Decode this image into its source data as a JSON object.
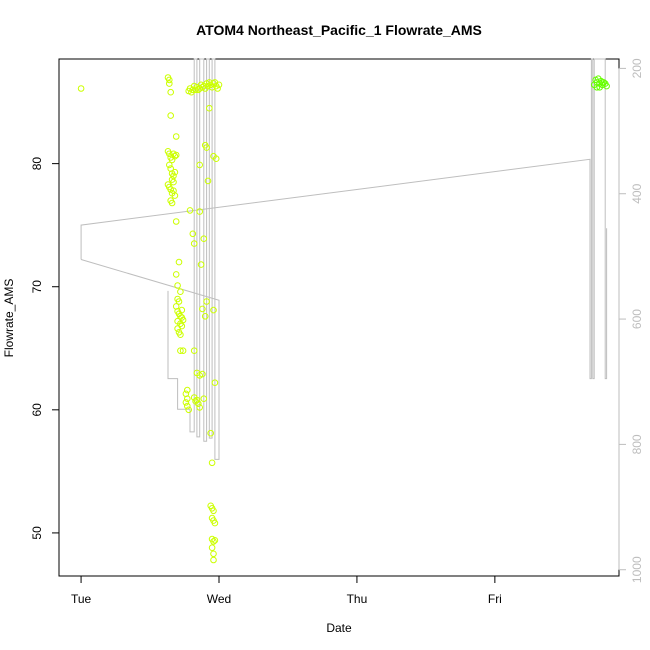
{
  "chart_data": {
    "type": "scatter",
    "title": "ATOM4 Northeast_Pacific_1 Flowrate_AMS",
    "xlabel": "Date",
    "ylabel": "Flowrate_AMS",
    "x_tick_labels": [
      "Tue",
      "Wed",
      "Thu",
      "Fri"
    ],
    "xlim": [
      -0.16,
      3.9
    ],
    "ylim": [
      46.5,
      88.5
    ],
    "y_ticks": [
      50,
      60,
      70,
      80
    ],
    "y2_ticks": [
      200,
      400,
      600,
      800,
      1000
    ],
    "y2lim": [
      1010,
      185
    ],
    "colors": {
      "points": "#ccff00",
      "points_late": "#66ff00",
      "line": "#bebebe",
      "axis": "#000000",
      "axis_right": "#bdbdbd"
    },
    "series": [
      {
        "kind": "points",
        "values": [
          [
            0.0,
            86.1
          ],
          [
            0.63,
            87.0
          ],
          [
            0.64,
            86.5
          ],
          [
            0.64,
            86.8
          ],
          [
            0.65,
            85.8
          ],
          [
            0.65,
            83.9
          ],
          [
            0.63,
            81.0
          ],
          [
            0.64,
            80.8
          ],
          [
            0.65,
            80.5
          ],
          [
            0.66,
            80.3
          ],
          [
            0.67,
            80.8
          ],
          [
            0.68,
            80.6
          ],
          [
            0.69,
            80.7
          ],
          [
            0.64,
            79.9
          ],
          [
            0.65,
            79.6
          ],
          [
            0.66,
            79.2
          ],
          [
            0.67,
            79.0
          ],
          [
            0.68,
            79.3
          ],
          [
            0.66,
            78.7
          ],
          [
            0.67,
            78.5
          ],
          [
            0.63,
            78.3
          ],
          [
            0.64,
            78.1
          ],
          [
            0.65,
            77.9
          ],
          [
            0.66,
            77.6
          ],
          [
            0.67,
            77.8
          ],
          [
            0.68,
            77.4
          ],
          [
            0.65,
            77.0
          ],
          [
            0.66,
            76.8
          ],
          [
            0.69,
            82.2
          ],
          [
            0.69,
            75.3
          ],
          [
            0.69,
            71.0
          ],
          [
            0.71,
            72.0
          ],
          [
            0.7,
            70.1
          ],
          [
            0.72,
            69.6
          ],
          [
            0.7,
            69.0
          ],
          [
            0.71,
            68.8
          ],
          [
            0.69,
            68.4
          ],
          [
            0.7,
            68.0
          ],
          [
            0.71,
            67.8
          ],
          [
            0.72,
            67.6
          ],
          [
            0.73,
            67.5
          ],
          [
            0.7,
            67.2
          ],
          [
            0.72,
            67.0
          ],
          [
            0.73,
            66.8
          ],
          [
            0.7,
            66.6
          ],
          [
            0.71,
            66.3
          ],
          [
            0.72,
            66.1
          ],
          [
            0.73,
            68.1
          ],
          [
            0.74,
            67.3
          ],
          [
            0.72,
            64.8
          ],
          [
            0.74,
            64.8
          ],
          [
            0.77,
            61.6
          ],
          [
            0.76,
            61.3
          ],
          [
            0.77,
            60.9
          ],
          [
            0.76,
            60.6
          ],
          [
            0.77,
            60.3
          ],
          [
            0.78,
            60.0
          ],
          [
            0.78,
            85.9
          ],
          [
            0.79,
            86.1
          ],
          [
            0.8,
            85.8
          ],
          [
            0.81,
            86.0
          ],
          [
            0.82,
            86.3
          ],
          [
            0.83,
            86.0
          ],
          [
            0.84,
            86.2
          ],
          [
            0.85,
            86.0
          ],
          [
            0.86,
            86.1
          ],
          [
            0.87,
            86.4
          ],
          [
            0.88,
            86.2
          ],
          [
            0.89,
            86.3
          ],
          [
            0.9,
            86.1
          ],
          [
            0.91,
            86.5
          ],
          [
            0.92,
            86.3
          ],
          [
            0.93,
            86.6
          ],
          [
            0.94,
            86.4
          ],
          [
            0.95,
            86.2
          ],
          [
            0.96,
            86.5
          ],
          [
            0.97,
            86.6
          ],
          [
            0.98,
            86.3
          ],
          [
            0.99,
            86.1
          ],
          [
            1.0,
            86.4
          ],
          [
            0.79,
            76.2
          ],
          [
            0.81,
            74.3
          ],
          [
            0.82,
            73.5
          ],
          [
            0.86,
            76.1
          ],
          [
            0.87,
            71.8
          ],
          [
            0.89,
            73.9
          ],
          [
            0.91,
            68.8
          ],
          [
            0.9,
            67.6
          ],
          [
            0.88,
            68.2
          ],
          [
            0.92,
            78.6
          ],
          [
            0.9,
            81.5
          ],
          [
            0.91,
            81.3
          ],
          [
            0.86,
            79.9
          ],
          [
            0.96,
            80.6
          ],
          [
            0.98,
            80.4
          ],
          [
            0.93,
            84.5
          ],
          [
            0.82,
            64.8
          ],
          [
            0.84,
            63.0
          ],
          [
            0.86,
            62.8
          ],
          [
            0.88,
            62.9
          ],
          [
            0.82,
            61.0
          ],
          [
            0.84,
            60.8
          ],
          [
            0.85,
            60.5
          ],
          [
            0.86,
            60.2
          ],
          [
            0.83,
            60.7
          ],
          [
            0.89,
            60.9
          ],
          [
            0.96,
            68.1
          ],
          [
            0.97,
            62.2
          ],
          [
            0.94,
            58.1
          ],
          [
            0.95,
            55.7
          ],
          [
            0.94,
            52.2
          ],
          [
            0.95,
            52.0
          ],
          [
            0.96,
            51.8
          ],
          [
            0.95,
            51.2
          ],
          [
            0.96,
            51.0
          ],
          [
            0.97,
            50.8
          ],
          [
            0.95,
            49.5
          ],
          [
            0.96,
            49.3
          ],
          [
            0.97,
            49.4
          ],
          [
            0.95,
            48.8
          ],
          [
            0.96,
            48.3
          ],
          [
            0.96,
            47.8
          ]
        ]
      },
      {
        "kind": "points_late",
        "values": [
          [
            3.72,
            86.4
          ],
          [
            3.73,
            86.8
          ],
          [
            3.74,
            86.6
          ],
          [
            3.75,
            86.9
          ],
          [
            3.76,
            86.5
          ],
          [
            3.77,
            86.7
          ],
          [
            3.78,
            86.4
          ],
          [
            3.79,
            86.6
          ],
          [
            3.8,
            86.5
          ],
          [
            3.81,
            86.3
          ],
          [
            3.74,
            86.2
          ],
          [
            3.76,
            86.2
          ],
          [
            3.78,
            86.6
          ]
        ]
      },
      {
        "kind": "line",
        "axis": "right",
        "values": [
          [
            0.0,
            505
          ],
          [
            0.0,
            450
          ],
          [
            3.69,
            345
          ],
          [
            3.69,
            695
          ],
          [
            3.7,
            695
          ],
          [
            3.7,
            185
          ],
          [
            3.71,
            185
          ],
          [
            3.71,
            695
          ],
          [
            3.72,
            695
          ],
          [
            3.72,
            185
          ],
          [
            3.8,
            185
          ],
          [
            3.8,
            695
          ],
          [
            3.81,
            695
          ],
          [
            3.81,
            455
          ]
        ]
      },
      {
        "kind": "line",
        "axis": "right",
        "values": [
          [
            0.0,
            505
          ],
          [
            1.0,
            570
          ],
          [
            1.0,
            824
          ],
          [
            0.97,
            824
          ],
          [
            0.97,
            185
          ],
          [
            0.95,
            185
          ],
          [
            0.95,
            790
          ],
          [
            0.93,
            790
          ],
          [
            0.93,
            185
          ],
          [
            0.91,
            185
          ],
          [
            0.91,
            795
          ],
          [
            0.89,
            795
          ],
          [
            0.89,
            185
          ],
          [
            0.86,
            185
          ],
          [
            0.86,
            788
          ],
          [
            0.84,
            788
          ],
          [
            0.84,
            185
          ],
          [
            0.82,
            185
          ],
          [
            0.82,
            780
          ],
          [
            0.79,
            780
          ],
          [
            0.79,
            744
          ],
          [
            0.7,
            744
          ],
          [
            0.7,
            695
          ],
          [
            0.63,
            695
          ],
          [
            0.63,
            555
          ]
        ]
      }
    ]
  }
}
